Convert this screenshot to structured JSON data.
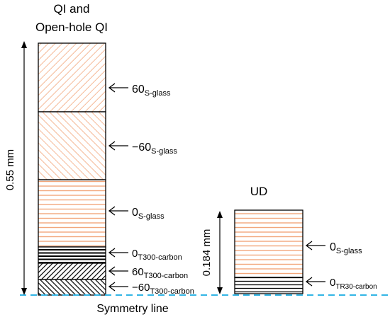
{
  "colors": {
    "glass": "#f2a77c",
    "carbon": "#000000",
    "symmetry_line": "#33b5e5",
    "outline": "#000000"
  },
  "left_column": {
    "title_line1": "QI and",
    "title_line2": "Open-hole QI",
    "thickness_label": "0.55 mm",
    "layers": [
      {
        "base": "60",
        "sub": "S-glass",
        "pattern": "diag-right",
        "material": "glass"
      },
      {
        "base": "−60",
        "sub": "S-glass",
        "pattern": "diag-left",
        "material": "glass"
      },
      {
        "base": "0",
        "sub": "S-glass",
        "pattern": "horizontal",
        "material": "glass"
      },
      {
        "base": "0",
        "sub": "T300-carbon",
        "pattern": "horizontal",
        "material": "carbon"
      },
      {
        "base": "60",
        "sub": "T300-carbon",
        "pattern": "diag-right",
        "material": "carbon"
      },
      {
        "base": "−60",
        "sub": "T300-carbon",
        "pattern": "diag-left",
        "material": "carbon"
      }
    ]
  },
  "right_column": {
    "title": "UD",
    "thickness_label": "0.184 mm",
    "layers": [
      {
        "base": "0",
        "sub": "S-glass",
        "pattern": "horizontal",
        "material": "glass"
      },
      {
        "base": "0",
        "sub": "TR30-carbon",
        "pattern": "horizontal",
        "material": "carbon"
      }
    ]
  },
  "symmetry_label": "Symmetry line"
}
